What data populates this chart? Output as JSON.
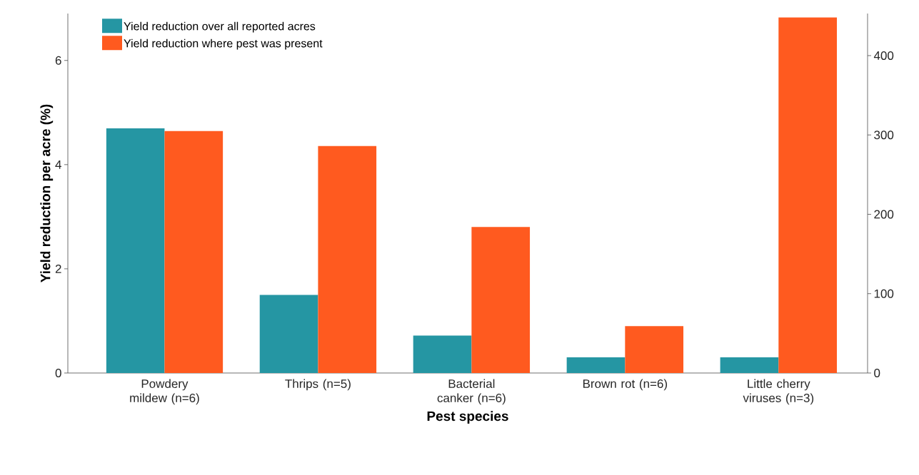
{
  "chart_data": {
    "type": "bar",
    "xlabel": "Pest species",
    "ylabel": "Yield reduction per acre (%)",
    "categories": [
      "Powdery mildew (n=6)",
      "Thrips (n=5)",
      "Bacterial canker (n=6)",
      "Brown rot (n=6)",
      "Little cherry viruses (n=3)"
    ],
    "series": [
      {
        "name": "Yield reduction over all reported acres",
        "color": "#2596a3",
        "values": [
          4.7,
          1.5,
          0.72,
          0.3,
          0.3
        ]
      },
      {
        "name": "Yield reduction where pest was present",
        "color": "#ff5a1f",
        "axis": "y2",
        "values": [
          305,
          286,
          184,
          59,
          448
        ]
      }
    ],
    "ylim": [
      0,
      6.9
    ],
    "yticks": [
      0,
      2,
      4,
      6
    ],
    "y2lim": [
      0,
      453
    ],
    "y2ticks": [
      0,
      100,
      200,
      300,
      400
    ],
    "legend": "top left",
    "grid": false
  }
}
